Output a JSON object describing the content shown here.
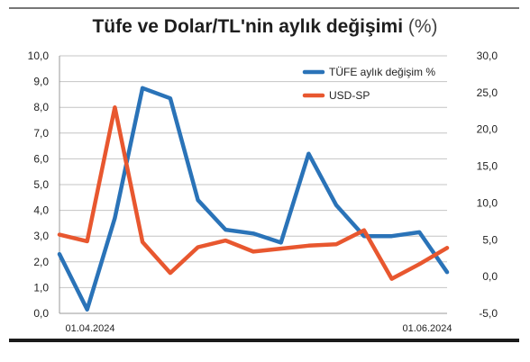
{
  "chart_data": {
    "type": "line",
    "title": "Tüfe ve Dolar/TL'nin aylık değişimi",
    "title_unit": "(%)",
    "x_start_label": "01.04.2024",
    "x_end_label": "01.06.2024",
    "y_left": {
      "ticks": [
        "10,0",
        "9,0",
        "8,0",
        "7,0",
        "6,0",
        "5,0",
        "4,0",
        "3,0",
        "2,0",
        "1,0",
        "0,0"
      ],
      "lim": [
        0,
        10
      ]
    },
    "y_right": {
      "ticks": [
        "30,0",
        "25,0",
        "20,0",
        "15,0",
        "10,0",
        "5,0",
        "0,0",
        "-5,0"
      ],
      "lim": [
        -5,
        30
      ]
    },
    "grid": true,
    "legend_position": "top-right",
    "series": [
      {
        "name": "TÜFE aylık değişim %",
        "axis": "left",
        "color": "#2a73b8",
        "values": [
          2.3,
          0.15,
          3.7,
          8.75,
          8.35,
          4.4,
          3.25,
          3.1,
          2.75,
          6.2,
          4.2,
          3.0,
          3.0,
          3.15,
          1.6
        ]
      },
      {
        "name": "USD-SP",
        "axis": "right",
        "color": "#e8572f",
        "values": [
          5.7,
          4.8,
          23.0,
          4.7,
          0.5,
          4.0,
          4.9,
          3.4,
          3.8,
          4.2,
          4.4,
          6.3,
          -0.3,
          1.7,
          3.9
        ]
      }
    ]
  }
}
